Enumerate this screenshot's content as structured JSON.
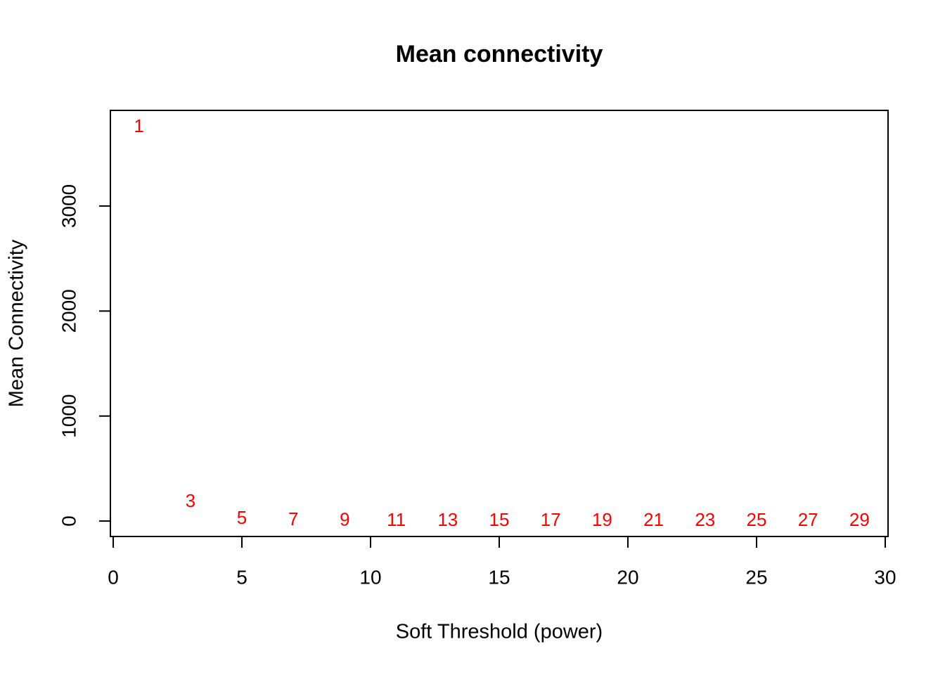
{
  "chart_data": {
    "type": "scatter",
    "title": "Mean connectivity",
    "xlabel": "Soft Threshold (power)",
    "ylabel": "Mean Connectivity",
    "x": [
      1,
      3,
      5,
      7,
      9,
      11,
      13,
      15,
      17,
      19,
      21,
      23,
      25,
      27,
      29
    ],
    "values": [
      3750,
      180,
      20,
      5,
      2,
      1,
      0.5,
      0.3,
      0.2,
      0.1,
      0.1,
      0.05,
      0.03,
      0.02,
      0.01
    ],
    "color": "#ff0000",
    "xlim": [
      -0.11,
      30.11
    ],
    "ylim": [
      -147,
      3911
    ],
    "xticks": [
      0,
      5,
      10,
      15,
      20,
      25,
      30
    ],
    "yticks": [
      0,
      1000,
      2000,
      3000
    ],
    "grid": false
  }
}
